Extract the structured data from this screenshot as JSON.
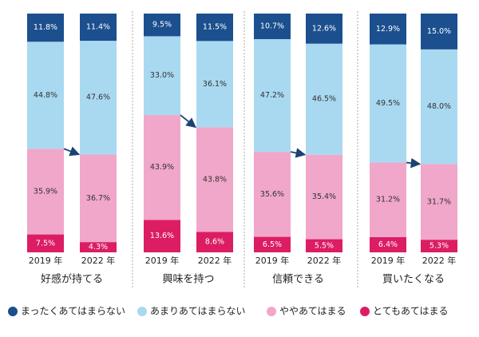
{
  "chart_data": {
    "type": "stacked_bar",
    "groups": [
      "好感が持てる",
      "興味を持つ",
      "信頼できる",
      "買いたくなる"
    ],
    "categories": [
      "2019 年",
      "2022 年",
      "2019 年",
      "2022 年",
      "2019 年",
      "2022 年",
      "2019 年",
      "2022 年"
    ],
    "series": [
      {
        "name": "まったくあてはまらない",
        "color": "#1b4f8e",
        "values": [
          11.8,
          11.4,
          9.5,
          11.5,
          10.7,
          12.6,
          12.9,
          15.0
        ],
        "value_labels": [
          "11.8%",
          "11.4%",
          "9.5%",
          "11.5%",
          "10.7%",
          "12.6%",
          "12.9%",
          "15.0%"
        ]
      },
      {
        "name": "あまりあてはまらない",
        "color": "#a9d9f1",
        "values": [
          44.8,
          47.6,
          33.0,
          36.1,
          47.2,
          46.5,
          49.5,
          48.0
        ],
        "value_labels": [
          "44.8%",
          "47.6%",
          "33.0%",
          "36.1%",
          "47.2%",
          "46.5%",
          "49.5%",
          "48.0%"
        ]
      },
      {
        "name": "ややあてはまる",
        "color": "#f0a7c9",
        "values": [
          35.9,
          36.7,
          43.9,
          43.8,
          35.6,
          35.4,
          31.2,
          31.7
        ],
        "value_labels": [
          "35.9%",
          "36.7%",
          "43.9%",
          "43.8%",
          "35.6%",
          "35.4%",
          "31.2%",
          "31.7%"
        ]
      },
      {
        "name": "とてもあてはまる",
        "color": "#dc1d63",
        "values": [
          7.5,
          4.3,
          13.6,
          8.6,
          6.5,
          5.5,
          6.4,
          5.3
        ],
        "value_labels": [
          "7.5%",
          "4.3%",
          "13.6%",
          "8.6%",
          "6.5%",
          "5.5%",
          "6.4%",
          "5.3%"
        ]
      }
    ]
  }
}
